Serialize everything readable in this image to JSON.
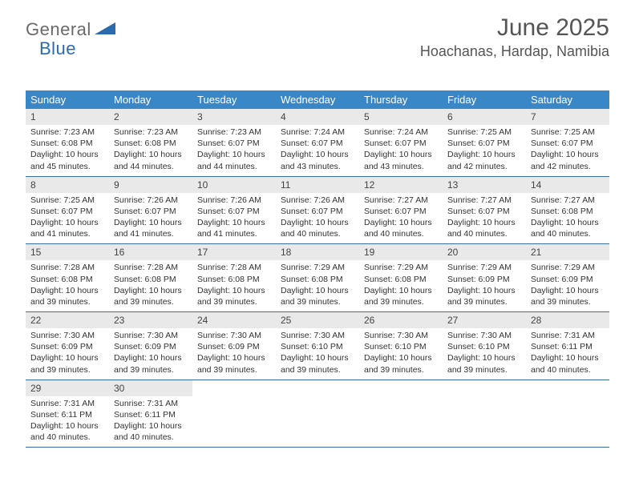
{
  "brand": {
    "part1": "General",
    "part2": "Blue"
  },
  "title": "June 2025",
  "location": "Hoachanas, Hardap, Namibia",
  "colors": {
    "header_bg": "#3a87c8",
    "row_border": "#3a6e9c",
    "daynum_bg": "#e9e9e9",
    "text_dark": "#333333",
    "text_medium": "#555555",
    "brand_gray": "#6a6a6a",
    "brand_blue": "#2a6bb0"
  },
  "days_of_week": [
    "Sunday",
    "Monday",
    "Tuesday",
    "Wednesday",
    "Thursday",
    "Friday",
    "Saturday"
  ],
  "weeks": [
    [
      {
        "n": "1",
        "sr": "7:23 AM",
        "ss": "6:08 PM",
        "dl": "10 hours and 45 minutes."
      },
      {
        "n": "2",
        "sr": "7:23 AM",
        "ss": "6:08 PM",
        "dl": "10 hours and 44 minutes."
      },
      {
        "n": "3",
        "sr": "7:23 AM",
        "ss": "6:07 PM",
        "dl": "10 hours and 44 minutes."
      },
      {
        "n": "4",
        "sr": "7:24 AM",
        "ss": "6:07 PM",
        "dl": "10 hours and 43 minutes."
      },
      {
        "n": "5",
        "sr": "7:24 AM",
        "ss": "6:07 PM",
        "dl": "10 hours and 43 minutes."
      },
      {
        "n": "6",
        "sr": "7:25 AM",
        "ss": "6:07 PM",
        "dl": "10 hours and 42 minutes."
      },
      {
        "n": "7",
        "sr": "7:25 AM",
        "ss": "6:07 PM",
        "dl": "10 hours and 42 minutes."
      }
    ],
    [
      {
        "n": "8",
        "sr": "7:25 AM",
        "ss": "6:07 PM",
        "dl": "10 hours and 41 minutes."
      },
      {
        "n": "9",
        "sr": "7:26 AM",
        "ss": "6:07 PM",
        "dl": "10 hours and 41 minutes."
      },
      {
        "n": "10",
        "sr": "7:26 AM",
        "ss": "6:07 PM",
        "dl": "10 hours and 41 minutes."
      },
      {
        "n": "11",
        "sr": "7:26 AM",
        "ss": "6:07 PM",
        "dl": "10 hours and 40 minutes."
      },
      {
        "n": "12",
        "sr": "7:27 AM",
        "ss": "6:07 PM",
        "dl": "10 hours and 40 minutes."
      },
      {
        "n": "13",
        "sr": "7:27 AM",
        "ss": "6:07 PM",
        "dl": "10 hours and 40 minutes."
      },
      {
        "n": "14",
        "sr": "7:27 AM",
        "ss": "6:08 PM",
        "dl": "10 hours and 40 minutes."
      }
    ],
    [
      {
        "n": "15",
        "sr": "7:28 AM",
        "ss": "6:08 PM",
        "dl": "10 hours and 39 minutes."
      },
      {
        "n": "16",
        "sr": "7:28 AM",
        "ss": "6:08 PM",
        "dl": "10 hours and 39 minutes."
      },
      {
        "n": "17",
        "sr": "7:28 AM",
        "ss": "6:08 PM",
        "dl": "10 hours and 39 minutes."
      },
      {
        "n": "18",
        "sr": "7:29 AM",
        "ss": "6:08 PM",
        "dl": "10 hours and 39 minutes."
      },
      {
        "n": "19",
        "sr": "7:29 AM",
        "ss": "6:08 PM",
        "dl": "10 hours and 39 minutes."
      },
      {
        "n": "20",
        "sr": "7:29 AM",
        "ss": "6:09 PM",
        "dl": "10 hours and 39 minutes."
      },
      {
        "n": "21",
        "sr": "7:29 AM",
        "ss": "6:09 PM",
        "dl": "10 hours and 39 minutes."
      }
    ],
    [
      {
        "n": "22",
        "sr": "7:30 AM",
        "ss": "6:09 PM",
        "dl": "10 hours and 39 minutes."
      },
      {
        "n": "23",
        "sr": "7:30 AM",
        "ss": "6:09 PM",
        "dl": "10 hours and 39 minutes."
      },
      {
        "n": "24",
        "sr": "7:30 AM",
        "ss": "6:09 PM",
        "dl": "10 hours and 39 minutes."
      },
      {
        "n": "25",
        "sr": "7:30 AM",
        "ss": "6:10 PM",
        "dl": "10 hours and 39 minutes."
      },
      {
        "n": "26",
        "sr": "7:30 AM",
        "ss": "6:10 PM",
        "dl": "10 hours and 39 minutes."
      },
      {
        "n": "27",
        "sr": "7:30 AM",
        "ss": "6:10 PM",
        "dl": "10 hours and 39 minutes."
      },
      {
        "n": "28",
        "sr": "7:31 AM",
        "ss": "6:11 PM",
        "dl": "10 hours and 40 minutes."
      }
    ],
    [
      {
        "n": "29",
        "sr": "7:31 AM",
        "ss": "6:11 PM",
        "dl": "10 hours and 40 minutes."
      },
      {
        "n": "30",
        "sr": "7:31 AM",
        "ss": "6:11 PM",
        "dl": "10 hours and 40 minutes."
      },
      null,
      null,
      null,
      null,
      null
    ]
  ],
  "labels": {
    "sunrise": "Sunrise:",
    "sunset": "Sunset:",
    "daylight": "Daylight:"
  }
}
